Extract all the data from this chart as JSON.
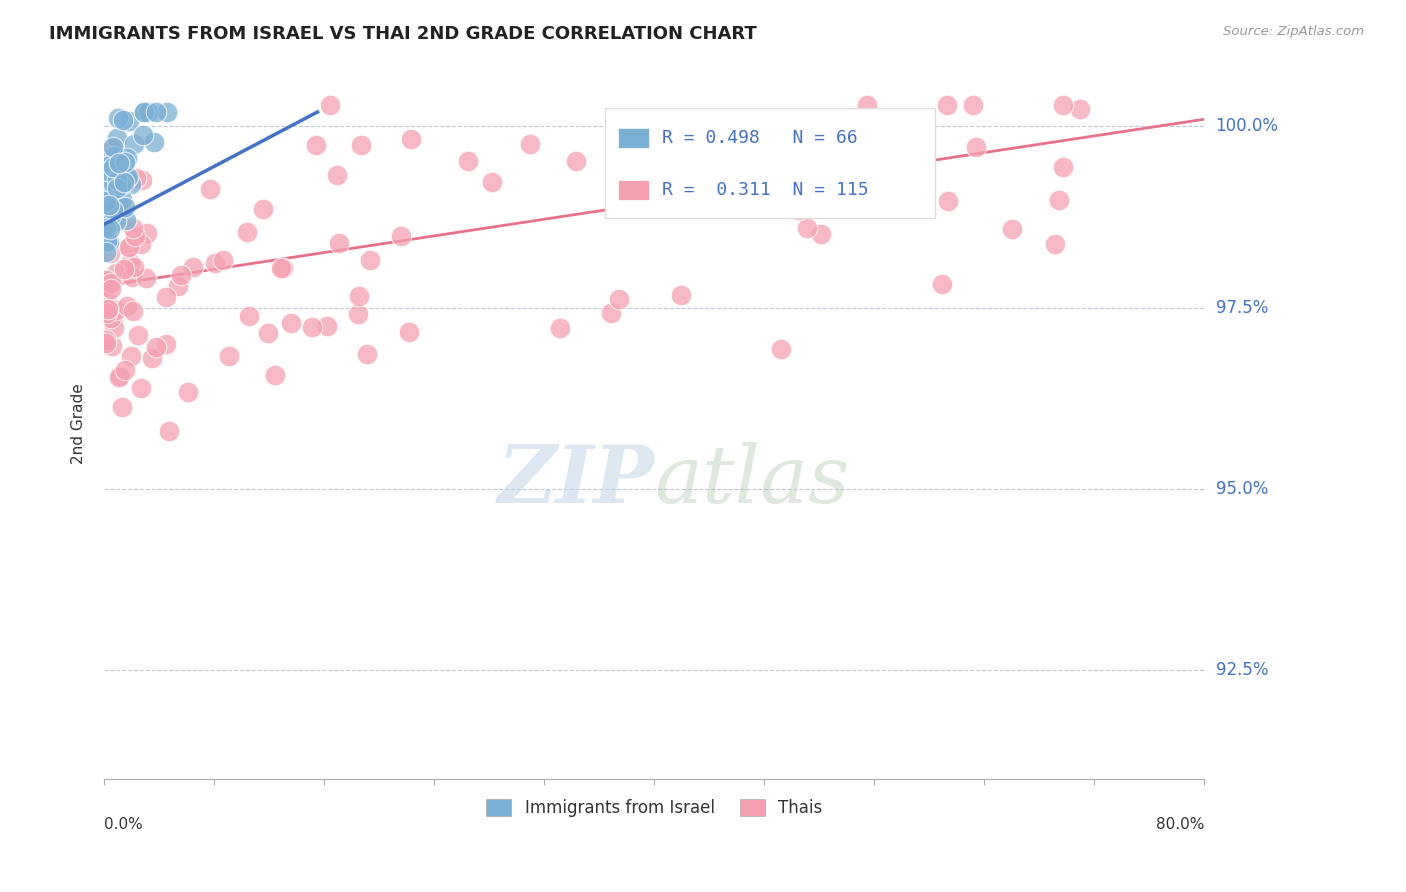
{
  "title": "IMMIGRANTS FROM ISRAEL VS THAI 2ND GRADE CORRELATION CHART",
  "source": "Source: ZipAtlas.com",
  "ylabel": "2nd Grade",
  "ytick_labels": [
    "100.0%",
    "97.5%",
    "95.0%",
    "92.5%"
  ],
  "ytick_values": [
    1.0,
    0.975,
    0.95,
    0.925
  ],
  "xlim": [
    0.0,
    0.8
  ],
  "ylim": [
    0.91,
    1.008
  ],
  "israel_R": 0.498,
  "israel_N": 66,
  "thai_R": 0.311,
  "thai_N": 115,
  "israel_color": "#7bafd4",
  "thai_color": "#f4a0b0",
  "israel_line_color": "#4472c4",
  "thai_line_color": "#e8708a",
  "israel_line_x": [
    0.0,
    0.155
  ],
  "israel_line_y": [
    0.9865,
    1.002
  ],
  "thai_line_x": [
    0.0,
    0.8
  ],
  "thai_line_y": [
    0.978,
    1.001
  ]
}
